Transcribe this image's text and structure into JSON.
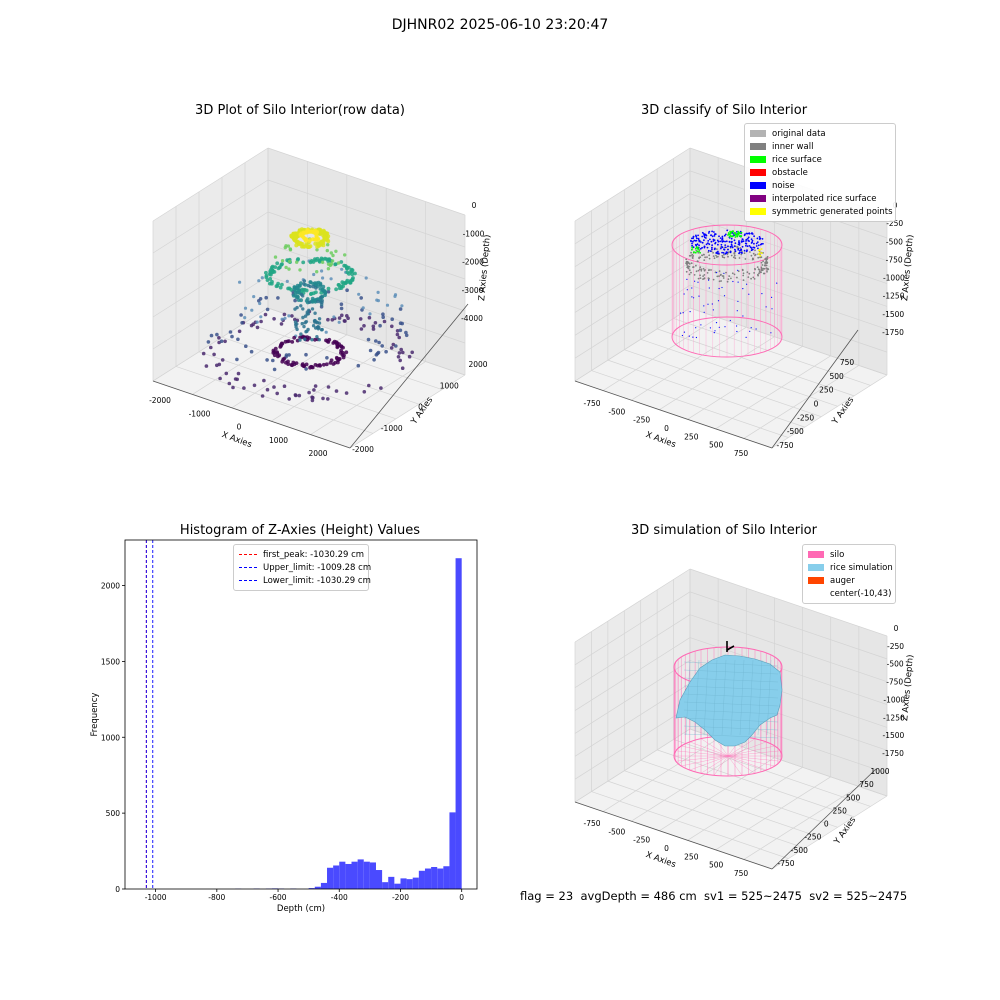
{
  "suptitle": "DJHNR02 2025-06-10 23:20:47",
  "panel1": {
    "title": "3D Plot of Silo Interior(row data)",
    "xlabel": "X Axies",
    "ylabel": "Y Axies",
    "zlabel": "Z Axies (Depth)",
    "xticks": [
      "-2000",
      "-1000",
      "0",
      "1000",
      "2000"
    ],
    "yticks": [
      "-2000",
      "-1000",
      "0",
      "1000",
      "2000"
    ],
    "zticks": [
      "0",
      "-1000",
      "-2000",
      "-3000",
      "-4000"
    ]
  },
  "panel2": {
    "title": "3D classify of Silo Interior",
    "xlabel": "X Axies",
    "ylabel": "Y Axies",
    "zlabel": "Z Axies (Depth)",
    "xticks": [
      "-750",
      "-500",
      "-250",
      "0",
      "250",
      "500",
      "750"
    ],
    "yticks": [
      "-750",
      "-500",
      "-250",
      "0",
      "250",
      "500",
      "750"
    ],
    "zticks": [
      "0",
      "-250",
      "-500",
      "-750",
      "-1000",
      "-1250",
      "-1500",
      "-1750"
    ],
    "legend": [
      {
        "label": "original data",
        "color": "#b3b3b3"
      },
      {
        "label": "inner wall",
        "color": "#808080"
      },
      {
        "label": "rice surface",
        "color": "#00ff00"
      },
      {
        "label": "obstacle",
        "color": "#ff0000"
      },
      {
        "label": "noise",
        "color": "#0000ff"
      },
      {
        "label": "interpolated rice surface",
        "color": "#800080"
      },
      {
        "label": "symmetric generated points",
        "color": "#ffff00"
      }
    ]
  },
  "panel3": {
    "title": "Histogram of Z-Axies (Height) Values",
    "legend": [
      {
        "label": "first_peak: -1030.29 cm",
        "color": "#ff0000"
      },
      {
        "label": "Upper_limit: -1009.28 cm",
        "color": "#0000ff"
      },
      {
        "label": "Lower_limit: -1030.29 cm",
        "color": "#0000ff"
      }
    ]
  },
  "panel4": {
    "title": "3D simulation of Silo Interior",
    "xlabel": "X Axies",
    "ylabel": "Y Axies",
    "zlabel": "Z Axies (Depth)",
    "xticks": [
      "-750",
      "-500",
      "-250",
      "0",
      "250",
      "500",
      "750"
    ],
    "yticks": [
      "-750",
      "-500",
      "-250",
      "0",
      "250",
      "500",
      "750",
      "1000"
    ],
    "zticks": [
      "0",
      "-250",
      "-500",
      "-750",
      "-1000",
      "-1250",
      "-1500",
      "-1750"
    ],
    "legend": [
      {
        "label": "silo",
        "color": "#ff69b4"
      },
      {
        "label": "rice simulation",
        "color": "#87ceeb"
      },
      {
        "label": "auger",
        "color": "#ff4500"
      },
      {
        "label": "center(-10,43)",
        "color": ""
      }
    ]
  },
  "footer": "flag = 23  avgDepth = 486 cm  sv1 = 525~2475  sv2 = 525~2475",
  "chart_data": [
    {
      "type": "scatter",
      "title": "3D Plot of Silo Interior(row data)",
      "xlabel": "X Axies",
      "ylabel": "Y Axies",
      "zlabel": "Z Axies (Depth)",
      "xlim": [
        -2400,
        2400
      ],
      "ylim": [
        -2400,
        2400
      ],
      "zlim": [
        -4800,
        0
      ],
      "colormap": "viridis",
      "grid": true
    },
    {
      "type": "scatter",
      "title": "3D classify of Silo Interior",
      "xlabel": "X Axies",
      "ylabel": "Y Axies",
      "zlabel": "Z Axies (Depth)",
      "xlim": [
        -900,
        900
      ],
      "ylim": [
        -900,
        900
      ],
      "zlim": [
        -1850,
        0
      ],
      "legend_position": "top-right",
      "grid": true
    },
    {
      "type": "bar",
      "title": "Histogram of Z-Axies (Height) Values",
      "xlabel": "Depth (cm)",
      "ylabel": "Frequency",
      "xlim": [
        -1100,
        50
      ],
      "ylim": [
        0,
        2300
      ],
      "xticks": [
        -1000,
        -800,
        -600,
        -400,
        -200,
        0
      ],
      "yticks": [
        0,
        500,
        1000,
        1500,
        2000
      ],
      "bin_width": 20,
      "bins": [
        [
          -740,
          2
        ],
        [
          -680,
          3
        ],
        [
          -640,
          3
        ],
        [
          -620,
          4
        ],
        [
          -600,
          3
        ],
        [
          -560,
          3
        ],
        [
          -500,
          6
        ],
        [
          -480,
          15
        ],
        [
          -460,
          40
        ],
        [
          -440,
          140
        ],
        [
          -420,
          155
        ],
        [
          -400,
          180
        ],
        [
          -380,
          165
        ],
        [
          -360,
          180
        ],
        [
          -340,
          195
        ],
        [
          -320,
          180
        ],
        [
          -300,
          175
        ],
        [
          -280,
          125
        ],
        [
          -260,
          45
        ],
        [
          -240,
          80
        ],
        [
          -220,
          35
        ],
        [
          -200,
          70
        ],
        [
          -180,
          65
        ],
        [
          -160,
          75
        ],
        [
          -140,
          120
        ],
        [
          -120,
          135
        ],
        [
          -100,
          145
        ],
        [
          -80,
          135
        ],
        [
          -60,
          150
        ],
        [
          -40,
          505
        ],
        [
          -20,
          2180
        ]
      ],
      "vlines": [
        {
          "name": "first_peak",
          "x": -1030.29,
          "color": "#ff0000"
        },
        {
          "name": "Upper_limit",
          "x": -1009.28,
          "color": "#0000ff"
        },
        {
          "name": "Lower_limit",
          "x": -1030.29,
          "color": "#0000ff"
        }
      ],
      "bar_color": "#4a4aff",
      "legend_position": "top-center",
      "grid": false
    },
    {
      "type": "area",
      "title": "3D simulation of Silo Interior",
      "xlabel": "X Axies",
      "ylabel": "Y Axies",
      "zlabel": "Z Axies (Depth)",
      "xlim": [
        -900,
        900
      ],
      "ylim": [
        -900,
        1100
      ],
      "zlim": [
        -1850,
        150
      ],
      "legend_position": "top-right",
      "grid": true
    }
  ]
}
